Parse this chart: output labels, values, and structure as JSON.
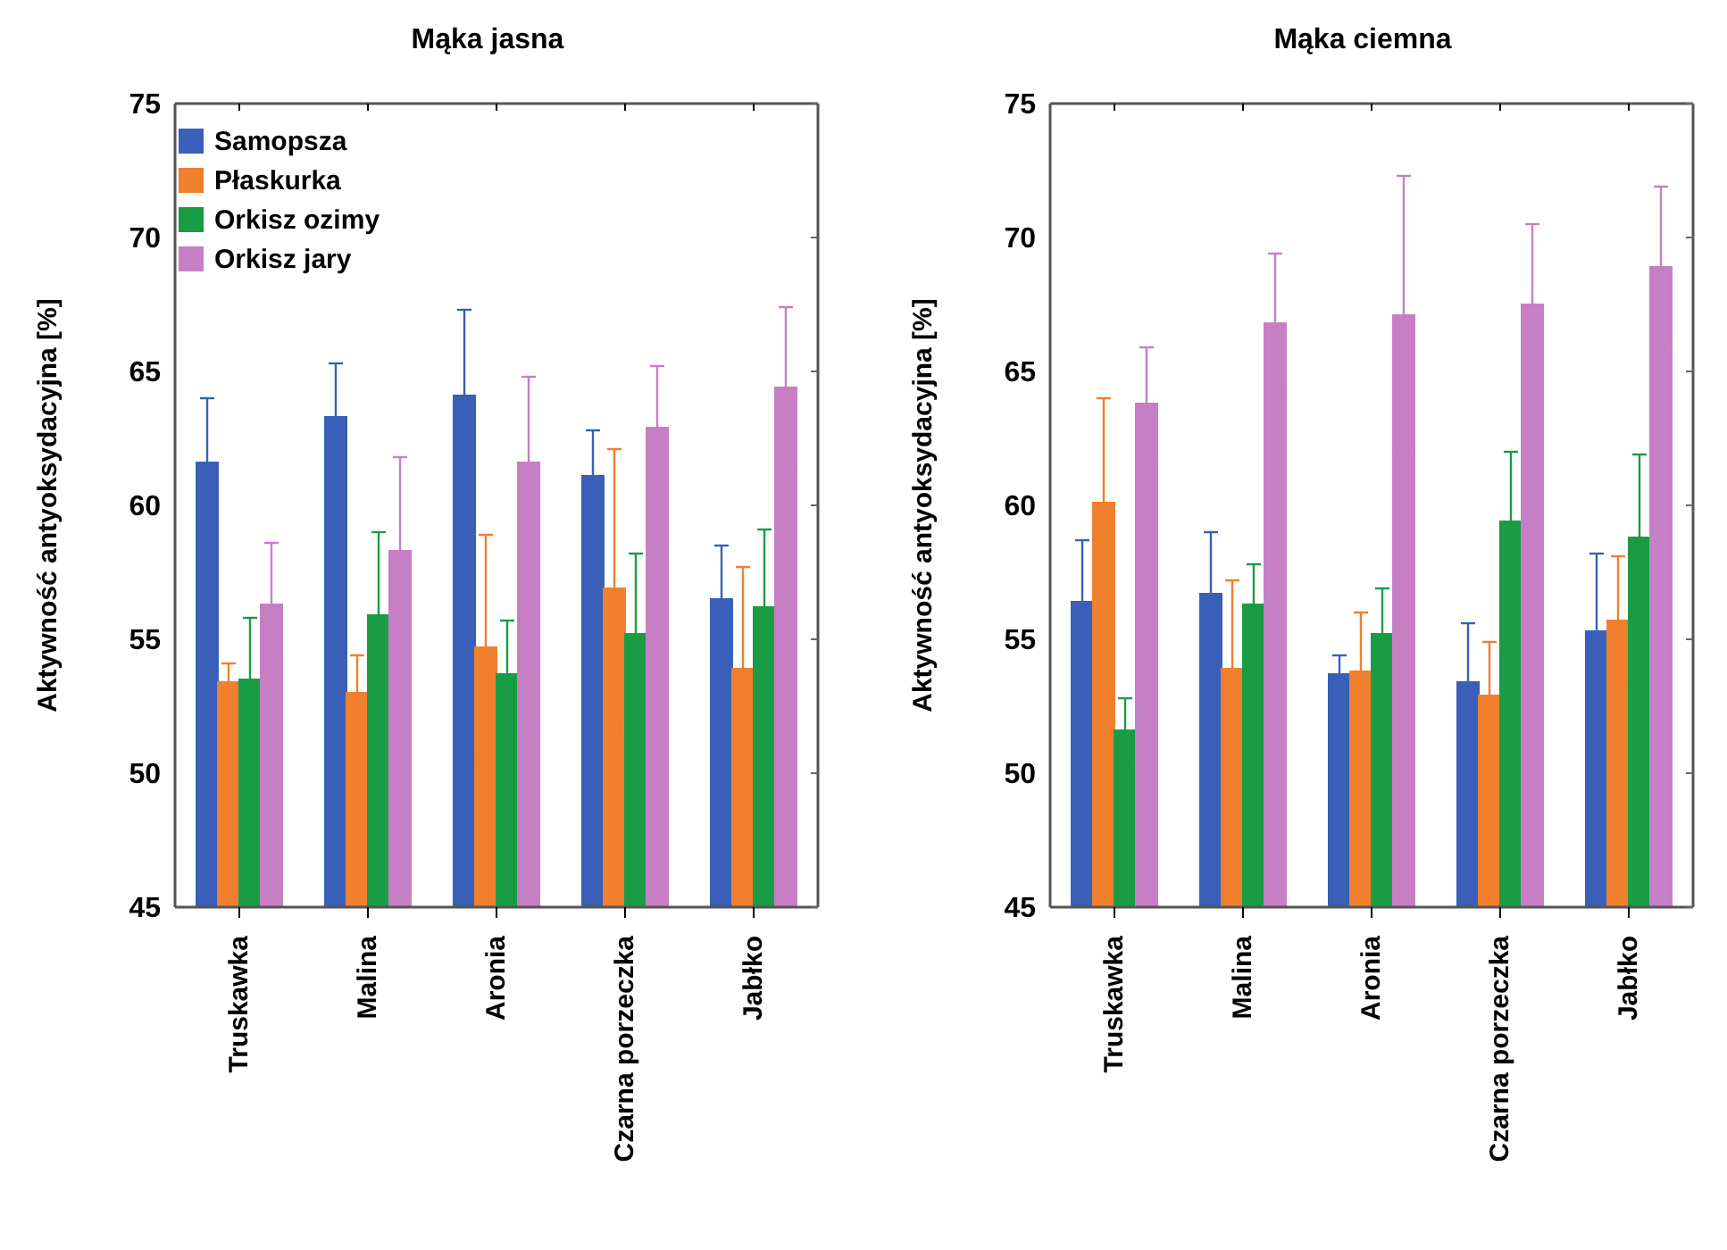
{
  "chart_data": [
    {
      "type": "bar",
      "title": "Mąka jasna",
      "ylabel": "Aktywność antyoksydacyjna [%]",
      "categories": [
        "Truskawka",
        "Malina",
        "Aronia",
        "Czarna porzeczka",
        "Jabłko"
      ],
      "ylim": [
        45,
        75
      ],
      "yticks": [
        45,
        50,
        55,
        60,
        65,
        70,
        75
      ],
      "grid": false,
      "legend": "top left",
      "series": [
        {
          "name": "Samopsza",
          "color": "#3a5fb8",
          "values": [
            61.6,
            63.3,
            64.1,
            61.1,
            56.5
          ],
          "errors": [
            2.4,
            2.0,
            3.2,
            1.7,
            2.0
          ]
        },
        {
          "name": "Płaskurka",
          "color": "#f07f2e",
          "values": [
            53.4,
            53.0,
            54.7,
            56.9,
            53.9
          ],
          "errors": [
            0.7,
            1.4,
            4.2,
            5.2,
            3.8
          ]
        },
        {
          "name": "Orkisz ozimy",
          "color": "#1a9c45",
          "values": [
            53.5,
            55.9,
            53.7,
            55.2,
            56.2
          ],
          "errors": [
            2.3,
            3.1,
            2.0,
            3.0,
            2.9
          ]
        },
        {
          "name": "Orkisz jary",
          "color": "#c67fc4",
          "values": [
            56.3,
            58.3,
            61.6,
            62.9,
            64.4
          ],
          "errors": [
            2.3,
            3.5,
            3.2,
            2.3,
            3.0
          ]
        }
      ]
    },
    {
      "type": "bar",
      "title": "Mąka ciemna",
      "ylabel": "Aktywność antyoksydacyjna [%]",
      "categories": [
        "Truskawka",
        "Malina",
        "Aronia",
        "Czarna porzeczka",
        "Jabłko"
      ],
      "ylim": [
        45,
        75
      ],
      "yticks": [
        45,
        50,
        55,
        60,
        65,
        70,
        75
      ],
      "grid": false,
      "legend": false,
      "series": [
        {
          "color": "#3a5fb8",
          "values": [
            56.4,
            56.7,
            53.7,
            53.4,
            55.3
          ],
          "errors": [
            2.3,
            2.3,
            0.7,
            2.2,
            2.9
          ]
        },
        {
          "color": "#f07f2e",
          "values": [
            60.1,
            53.9,
            53.8,
            52.9,
            55.7
          ],
          "errors": [
            3.9,
            3.3,
            2.2,
            2.0,
            2.4
          ]
        },
        {
          "color": "#1a9c45",
          "values": [
            51.6,
            56.3,
            55.2,
            59.4,
            58.8
          ],
          "errors": [
            1.2,
            1.5,
            1.7,
            2.6,
            3.1
          ]
        },
        {
          "color": "#c67fc4",
          "values": [
            63.8,
            66.8,
            67.1,
            67.5,
            68.9
          ],
          "errors": [
            2.1,
            2.6,
            5.2,
            3.0,
            3.0
          ]
        }
      ]
    }
  ]
}
